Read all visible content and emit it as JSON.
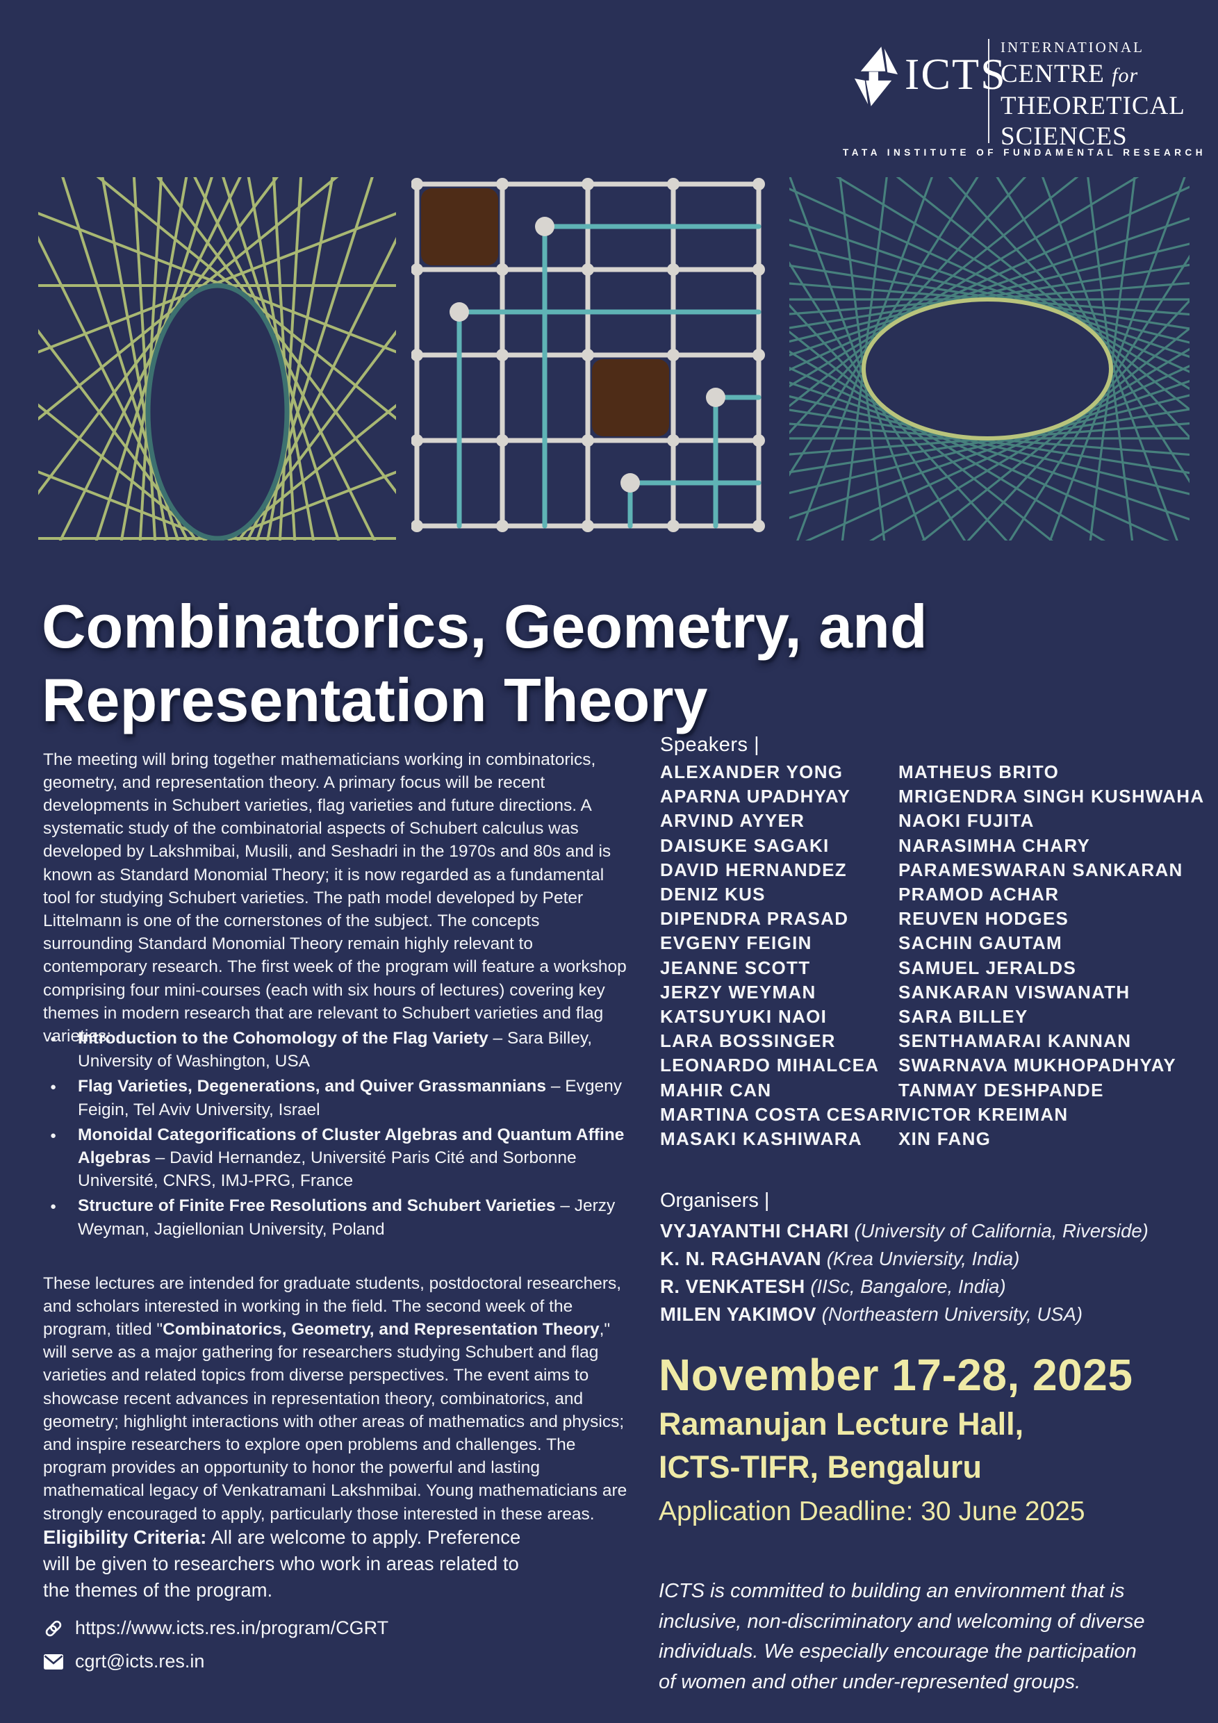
{
  "logo": {
    "short_name": "ICTS",
    "line1": "INTERNATIONAL",
    "line2_main": "CENTRE",
    "line2_italic": "for",
    "line3": "THEORETICAL",
    "line4": "SCIENCES",
    "tagline": "TATA INSTITUTE OF FUNDAMENTAL RESEARCH"
  },
  "title": {
    "line1": "Combinatorics, Geometry, and",
    "line2": "Representation Theory"
  },
  "description": {
    "p1": "The meeting will bring together mathematicians working in combinatorics, geometry, and representation theory.  A primary focus will be recent developments in Schubert varieties, flag varieties and future directions. A systematic study of the combinatorial aspects of Schubert calculus was developed by Lakshmibai, Musili, and Seshadri in the 1970s and 80s and is known as Standard Monomial Theory; it is now regarded as a fundamental tool for studying Schubert varieties. The path model developed by Peter Littelmann is one of the cornerstones of the subject. The concepts surrounding Standard Monomial Theory remain highly relevant to contemporary research. The first week of the program will feature a workshop comprising four mini-courses (each with six hours of lectures) covering key themes in modern research that are relevant to Schubert varieties and flag varieties:",
    "p2_pre": "These lectures are intended for graduate students, postdoctoral researchers, and scholars interested in working in the field. The second week of the program, titled \"",
    "p2_bold": "Combinatorics, Geometry, and Representation Theory",
    "p2_post": ",\" will serve as a major gathering for researchers studying Schubert and flag varieties and related topics from diverse perspectives. The event aims to showcase recent advances in representation theory, combinatorics, and geometry; highlight interactions with other areas of mathematics and physics; and inspire researchers to explore open problems and challenges. The program provides an opportunity to honor the powerful and lasting mathematical legacy of Venkatramani Lakshmibai. Young mathematicians are strongly encouraged to apply, particularly those interested in these areas."
  },
  "courses": [
    {
      "title": "Introduction to the Cohomology of the Flag Variety",
      "detail": "– Sara Billey, University of Washington, USA"
    },
    {
      "title": "Flag Varieties, Degenerations, and Quiver Grassmannians",
      "detail": "– Evgeny Feigin, Tel Aviv University, Israel"
    },
    {
      "title": "Monoidal Categorifications of Cluster Algebras and Quantum Affine Algebras",
      "detail": "– David Hernandez, Université Paris Cité and Sorbonne Université, CNRS, IMJ-PRG, France"
    },
    {
      "title": "Structure of Finite Free Resolutions and Schubert Varieties",
      "detail": "– Jerzy Weyman, Jagiellonian University, Poland"
    }
  ],
  "eligibility": {
    "label": "Eligibility Criteria:",
    "text": "All are welcome to apply. Preference will be given to researchers who work in areas related to the themes of the program."
  },
  "links": {
    "website": "https://www.icts.res.in/program/CGRT",
    "email": "cgrt@icts.res.in"
  },
  "speakers": {
    "label": "Speakers |",
    "col1": [
      "ALEXANDER YONG",
      "APARNA UPADHYAY",
      "ARVIND AYYER",
      "DAISUKE SAGAKI",
      "DAVID HERNANDEZ",
      "DENIZ KUS",
      "DIPENDRA PRASAD",
      "EVGENY FEIGIN",
      "JEANNE SCOTT",
      "JERZY WEYMAN",
      "KATSUYUKI NAOI",
      "LARA BOSSINGER",
      "LEONARDO MIHALCEA",
      "MAHIR CAN",
      "MARTINA COSTA CESARI",
      "MASAKI KASHIWARA"
    ],
    "col2": [
      "MATHEUS BRITO",
      "MRIGENDRA SINGH KUSHWAHA",
      "NAOKI FUJITA",
      "NARASIMHA CHARY",
      "PARAMESWARAN SANKARAN",
      "PRAMOD ACHAR",
      "REUVEN HODGES",
      "SACHIN GAUTAM",
      "SAMUEL JERALDS",
      "SANKARAN VISWANATH",
      "SARA BILLEY",
      "SENTHAMARAI KANNAN",
      "SWARNAVA MUKHOPADHYAY",
      "TANMAY DESHPANDE",
      "VICTOR KREIMAN",
      "XIN FANG"
    ]
  },
  "organisers": {
    "label": "Organisers |",
    "items": [
      {
        "name": "VYJAYANTHI CHARI",
        "affiliation": "(University of California, Riverside)"
      },
      {
        "name": "K. N. RAGHAVAN",
        "affiliation": "(Krea Unviersity, India)"
      },
      {
        "name": "R. VENKATESH",
        "affiliation": "(IISc, Bangalore, India)"
      },
      {
        "name": "MILEN YAKIMOV",
        "affiliation": "(Northeastern University, USA)"
      }
    ]
  },
  "event": {
    "dates": "November 17-28, 2025",
    "venue_line1": "Ramanujan Lecture Hall,",
    "venue_line2": "ICTS-TIFR, Bengaluru",
    "deadline": "Application Deadline: 30 June 2025"
  },
  "commitment": "ICTS is committed to building an environment that is inclusive, non-discriminatory and welcoming of diverse individuals. We especially encourage the participation of women and other under-represented groups.",
  "colors": {
    "background": "#293056",
    "accent_yellow": "#efeaa6",
    "string_green": "#a9b873",
    "string_teal": "#47807d",
    "oval_outline_teal": "#3d7170",
    "pipe_teal": "#5fb3b5",
    "grid_gray": "#d8d5d0",
    "square_brown": "#4e2c17",
    "text_white": "#f5f6f8"
  }
}
